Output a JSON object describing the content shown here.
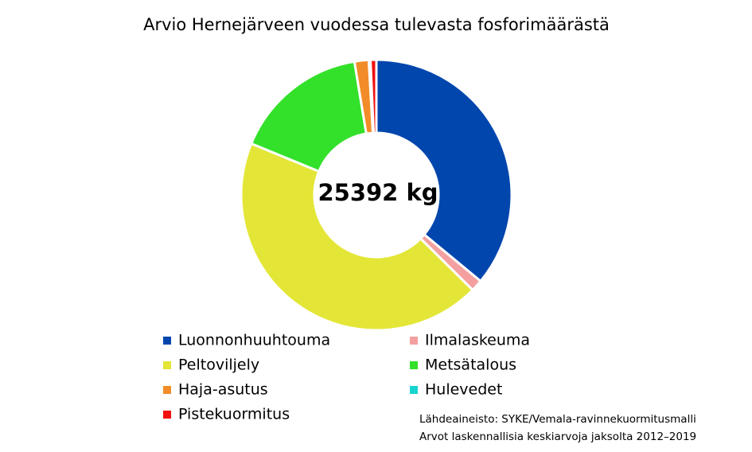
{
  "chart_data": {
    "type": "donut",
    "title": "Arvio Hernejärveen vuodessa tulevasta fosforimäärästä",
    "center_label": "25392 kg",
    "categories": [
      "Luonnonhuuhtouma",
      "Ilmalaskeuma",
      "Peltoviljely",
      "Metsätalous",
      "Haja-asutus",
      "Hulevedet",
      "Pistekuormitus"
    ],
    "values": [
      36,
      1.4,
      43.8,
      16.2,
      1.7,
      0.2,
      0.7
    ],
    "colors": [
      "#0046ad",
      "#f4a0a0",
      "#e3e636",
      "#33e02a",
      "#f28c28",
      "#17d4d0",
      "#f20f0f"
    ],
    "notes": [
      "Lähdeaineisto: SYKE/Vemala-ravinnekuormitusmalli",
      "Arvot laskennallisia keskiarvoja jaksolta 2012–2019"
    ]
  }
}
